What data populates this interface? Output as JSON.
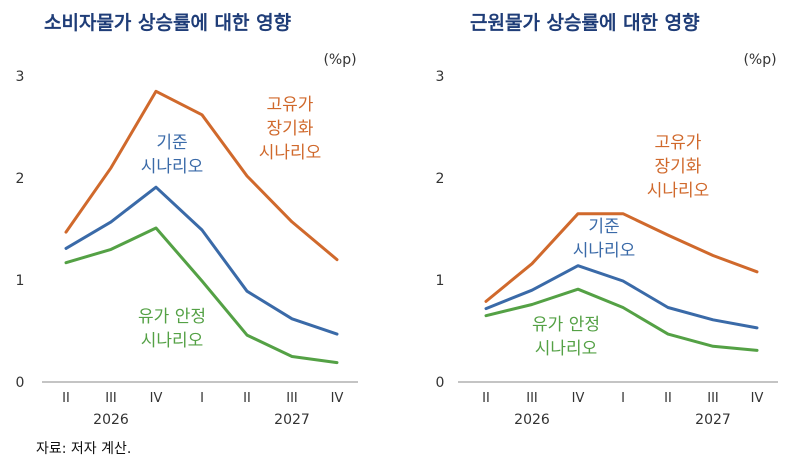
{
  "source": "자료: 저자 계산.",
  "colors": {
    "high_oil": "#d0692c",
    "baseline": "#3a6aa8",
    "stable_oil": "#54a145",
    "title": "#1f3d78"
  },
  "chart_data": [
    {
      "type": "line",
      "title": "소비자물가 상승률에 대한 영향",
      "unit": "(%p)",
      "categories": [
        "II",
        "III",
        "IV",
        "I",
        "II",
        "III",
        "IV"
      ],
      "year_labels": [
        "2026",
        "2027"
      ],
      "ylim": [
        0,
        3
      ],
      "yticks": [
        0,
        1,
        2,
        3
      ],
      "grid": false,
      "series": [
        {
          "key": "high_oil",
          "name": "고유가 장기화 시나리오",
          "label_lines": [
            "고유가",
            "장기화",
            "시나리오"
          ],
          "values": [
            1.47,
            2.1,
            2.85,
            2.62,
            2.02,
            1.57,
            1.2
          ]
        },
        {
          "key": "baseline",
          "name": "기준 시나리오",
          "label_lines": [
            "기준",
            "시나리오"
          ],
          "values": [
            1.31,
            1.57,
            1.91,
            1.49,
            0.89,
            0.62,
            0.47
          ]
        },
        {
          "key": "stable_oil",
          "name": "유가 안정 시나리오",
          "label_lines": [
            "유가 안정",
            "시나리오"
          ],
          "values": [
            1.17,
            1.3,
            1.51,
            0.99,
            0.46,
            0.25,
            0.19
          ]
        }
      ]
    },
    {
      "type": "line",
      "title": "근원물가 상승률에 대한 영향",
      "unit": "(%p)",
      "categories": [
        "II",
        "III",
        "IV",
        "I",
        "II",
        "III",
        "IV"
      ],
      "year_labels": [
        "2026",
        "2027"
      ],
      "ylim": [
        0,
        3
      ],
      "yticks": [
        0,
        1,
        2,
        3
      ],
      "grid": false,
      "series": [
        {
          "key": "high_oil",
          "name": "고유가 장기화 시나리오",
          "label_lines": [
            "고유가",
            "장기화",
            "시나리오"
          ],
          "values": [
            0.79,
            1.16,
            1.65,
            1.65,
            1.44,
            1.24,
            1.08
          ]
        },
        {
          "key": "baseline",
          "name": "기준 시나리오",
          "label_lines": [
            "기준",
            "시나리오"
          ],
          "values": [
            0.72,
            0.9,
            1.14,
            0.99,
            0.73,
            0.61,
            0.53
          ]
        },
        {
          "key": "stable_oil",
          "name": "유가 안정 시나리오",
          "label_lines": [
            "유가 안정",
            "시나리오"
          ],
          "values": [
            0.65,
            0.76,
            0.91,
            0.73,
            0.47,
            0.35,
            0.31
          ]
        }
      ]
    }
  ]
}
